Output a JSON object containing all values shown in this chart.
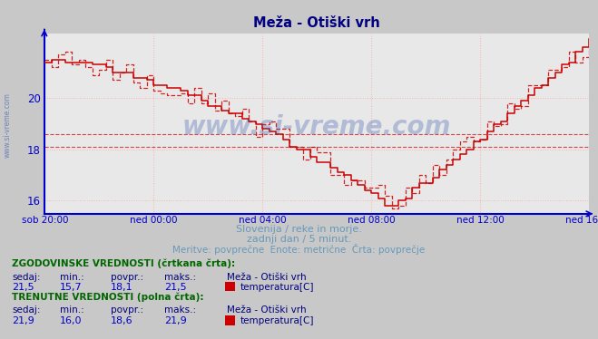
{
  "title": "Meža - Otiški vrh",
  "bg_color": "#c8c8c8",
  "plot_bg_color": "#e8e8e8",
  "grid_color": "#ffb0b0",
  "axis_color": "#0000cc",
  "text_color": "#6699bb",
  "label_color": "#000080",
  "green_label_color": "#006600",
  "ylim": [
    15.5,
    22.5
  ],
  "yticks": [
    16,
    18,
    20
  ],
  "yticklabels": [
    "16",
    "18",
    "20"
  ],
  "xlabel_ticks": [
    "sob 20:00",
    "ned 00:00",
    "ned 04:00",
    "ned 08:00",
    "ned 12:00",
    "ned 16:00"
  ],
  "hline_dashed_avg": 18.1,
  "hline_solid_avg": 18.6,
  "subtitle1": "Slovenija / reke in morje.",
  "subtitle2": "zadnji dan / 5 minut.",
  "subtitle3": "Meritve: povprečne  Enote: metrične  Črta: povprečje",
  "legend_station": "Meža - Otiški vrh",
  "legend_param": "temperatura[C]",
  "hist_label": "ZGODOVINSKE VREDNOSTI (črtkana črta):",
  "curr_label": "TRENUTNE VREDNOSTI (polna črta):",
  "col_headers": [
    "sedaj:",
    "min.:",
    "povpr.:",
    "maks.:"
  ],
  "hist_values": [
    "21,5",
    "15,7",
    "18,1",
    "21,5"
  ],
  "curr_values": [
    "21,9",
    "16,0",
    "18,6",
    "21,9"
  ],
  "line_color": "#cc0000",
  "watermark_text": "www.si-vreme.com",
  "watermark_color": "#3355aa",
  "sidebar_text": "www.si-vreme.com"
}
